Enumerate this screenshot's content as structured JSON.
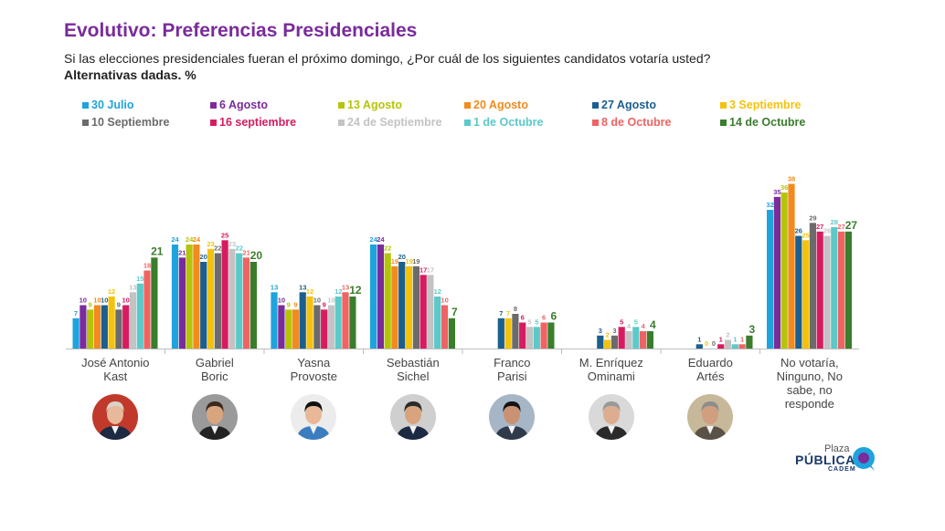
{
  "header": {
    "title": "Evolutivo: Preferencias Presidenciales",
    "subtitle": "Si las elecciones presidenciales fueran el próximo domingo, ¿Por cuál de los siguientes candidatos votaría usted?",
    "subtitle_bold": "Alternativas dadas. %"
  },
  "logo": {
    "line1": "Plaza",
    "line2": "PÚBLICA",
    "line3": "CADEM"
  },
  "chart_data": {
    "type": "bar",
    "title": "Evolutivo: Preferencias Presidenciales",
    "categories": [
      "José Antonio Kast",
      "Gabriel Boric",
      "Yasna Provoste",
      "Sebastián Sichel",
      "Franco Parisi",
      "M. Enríquez Ominami",
      "Eduardo Artés",
      "No votaría, Ninguno, No sabe, no responde"
    ],
    "category_lines": [
      [
        "José Antonio",
        "Kast"
      ],
      [
        "Gabriel",
        "Boric"
      ],
      [
        "Yasna",
        "Provoste"
      ],
      [
        "Sebastián",
        "Sichel"
      ],
      [
        "Franco",
        "Parisi"
      ],
      [
        "M. Enríquez",
        "Ominami"
      ],
      [
        "Eduardo",
        "Artés"
      ],
      [
        "No votaría,",
        "Ninguno, No",
        "sabe, no",
        "responde"
      ]
    ],
    "ylim": [
      0,
      40
    ],
    "grid": false,
    "legend_position": "top",
    "series": [
      {
        "name": "30 Julio",
        "color": "#1fa3dc",
        "values": [
          7,
          24,
          13,
          24,
          null,
          null,
          null,
          32
        ]
      },
      {
        "name": "6 Agosto",
        "color": "#7a2b9c",
        "values": [
          10,
          21,
          10,
          24,
          null,
          null,
          null,
          35
        ]
      },
      {
        "name": "13 Agosto",
        "color": "#b5c40a",
        "values": [
          9,
          24,
          9,
          22,
          null,
          null,
          null,
          36
        ]
      },
      {
        "name": "20 Agosto",
        "color": "#f28a1e",
        "values": [
          10,
          24,
          9,
          19,
          null,
          null,
          null,
          38
        ]
      },
      {
        "name": "27 Agosto",
        "color": "#1b5f8f",
        "values": [
          10,
          20,
          13,
          20,
          7,
          3,
          1,
          26
        ]
      },
      {
        "name": "3 Septiembre",
        "color": "#f4c20d",
        "values": [
          12,
          23,
          12,
          19,
          7,
          2,
          0,
          25
        ]
      },
      {
        "name": "10 Septiembre",
        "color": "#6b6b6b",
        "values": [
          9,
          22,
          10,
          19,
          8,
          3,
          0,
          29
        ]
      },
      {
        "name": "16 septiembre",
        "color": "#d81b60",
        "values": [
          10,
          25,
          9,
          17,
          6,
          5,
          1,
          27
        ]
      },
      {
        "name": "24 de Septiembre",
        "color": "#c3c3c3",
        "values": [
          13,
          23,
          10,
          17,
          5,
          4,
          2,
          26
        ]
      },
      {
        "name": "1 de Octubre",
        "color": "#5cc9c9",
        "values": [
          15,
          22,
          12,
          12,
          5,
          5,
          1,
          28
        ]
      },
      {
        "name": "8 de Octubre",
        "color": "#ef6363",
        "values": [
          18,
          21,
          13,
          10,
          6,
          4,
          1,
          27
        ]
      },
      {
        "name": "14 de Octubre",
        "color": "#3a7d2c",
        "values": [
          21,
          20,
          12,
          7,
          6,
          4,
          3,
          27
        ]
      }
    ]
  }
}
